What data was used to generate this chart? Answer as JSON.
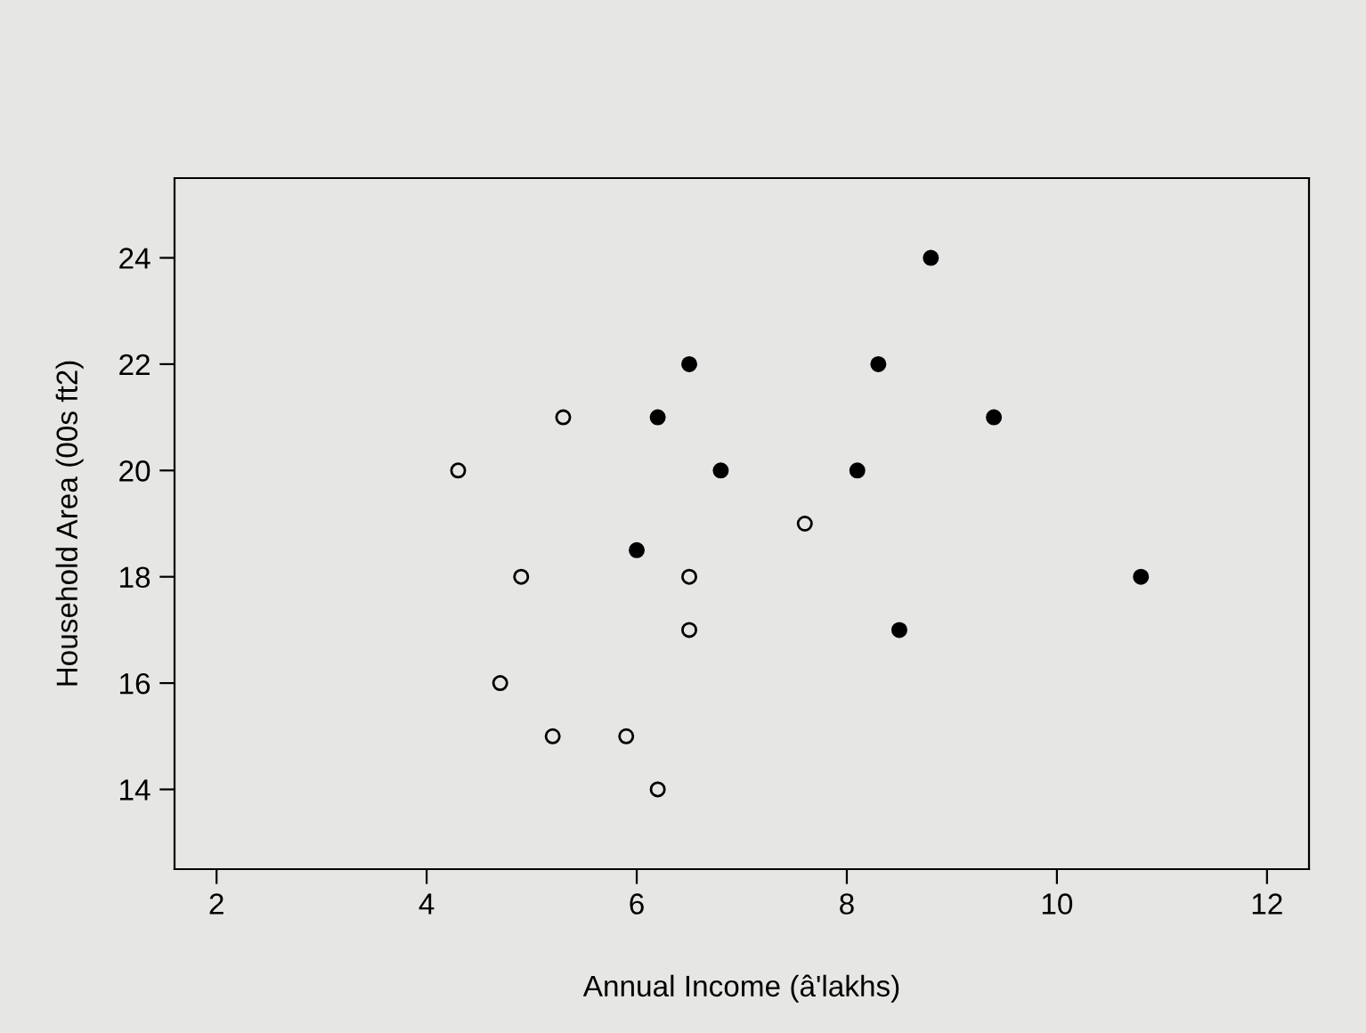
{
  "chart_data": {
    "type": "scatter",
    "xlabel": "Annual Income (â'lakhs)",
    "ylabel": "Household Area (00s ft2)",
    "xlim": [
      1.6,
      12.4
    ],
    "ylim": [
      12.5,
      25.5
    ],
    "xticks": [
      2,
      4,
      6,
      8,
      10,
      12
    ],
    "yticks": [
      14,
      16,
      18,
      20,
      22,
      24
    ],
    "grid": false,
    "legend": false,
    "marker": "circle",
    "series": [
      {
        "color": "#000000",
        "x": [
          4.3,
          4.7,
          4.9,
          5.2,
          5.3,
          5.9,
          6.2,
          6.5,
          6.5,
          7.6
        ],
        "values": [
          20,
          16,
          18,
          15,
          21,
          15,
          14,
          18,
          17,
          19
        ]
      },
      {
        "color": "#000000",
        "x": [
          6.0,
          6.2,
          6.5,
          6.8,
          8.1,
          8.3,
          8.5,
          8.8,
          9.4,
          10.8
        ],
        "values": [
          18.5,
          21,
          22,
          20,
          20,
          22,
          17,
          24,
          21,
          18
        ]
      }
    ]
  }
}
